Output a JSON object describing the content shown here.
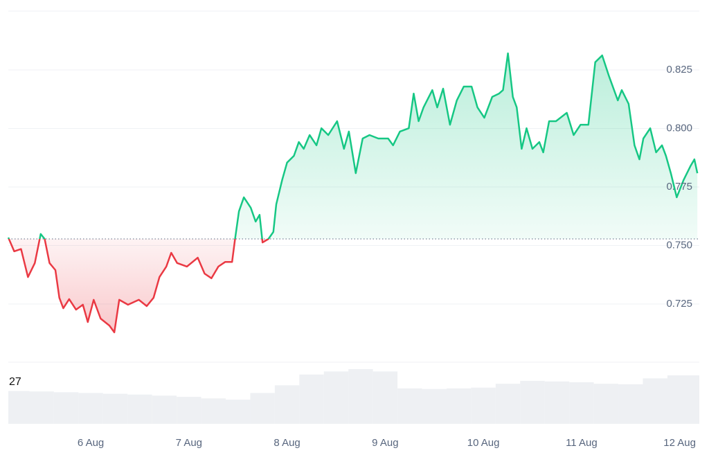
{
  "chart_data": {
    "type": "line",
    "x": [
      5.16,
      5.22,
      5.29,
      5.36,
      5.43,
      5.49,
      5.53,
      5.58,
      5.64,
      5.68,
      5.72,
      5.78,
      5.85,
      5.92,
      5.97,
      6.03,
      6.1,
      6.19,
      6.24,
      6.29,
      6.38,
      6.49,
      6.57,
      6.64,
      6.7,
      6.77,
      6.82,
      6.88,
      6.98,
      7.09,
      7.16,
      7.23,
      7.3,
      7.37,
      7.44,
      7.47,
      7.51,
      7.56,
      7.63,
      7.68,
      7.72,
      7.75,
      7.81,
      7.86,
      7.89,
      7.95,
      8.0,
      8.07,
      8.12,
      8.17,
      8.23,
      8.3,
      8.35,
      8.42,
      8.51,
      8.58,
      8.63,
      8.7,
      8.77,
      8.84,
      8.93,
      9.03,
      9.08,
      9.15,
      9.24,
      9.29,
      9.34,
      9.39,
      9.48,
      9.53,
      9.59,
      9.66,
      9.73,
      9.8,
      9.88,
      9.94,
      10.01,
      10.09,
      10.16,
      10.2,
      10.25,
      10.3,
      10.34,
      10.39,
      10.44,
      10.5,
      10.57,
      10.61,
      10.67,
      10.74,
      10.85,
      10.92,
      10.99,
      11.07,
      11.14,
      11.21,
      11.28,
      11.37,
      11.41,
      11.48,
      11.54,
      11.59,
      11.63,
      11.7,
      11.76,
      11.82,
      11.86,
      11.91,
      11.97,
      12.04,
      12.11,
      12.15,
      12.18
    ],
    "values": [
      0.7534,
      0.7475,
      0.7485,
      0.7365,
      0.7425,
      0.7549,
      0.7528,
      0.7425,
      0.7395,
      0.7277,
      0.7232,
      0.7271,
      0.7226,
      0.7247,
      0.7173,
      0.7268,
      0.7188,
      0.7158,
      0.7129,
      0.7268,
      0.7247,
      0.7268,
      0.7241,
      0.7277,
      0.7365,
      0.741,
      0.7469,
      0.7425,
      0.741,
      0.7448,
      0.738,
      0.736,
      0.741,
      0.743,
      0.743,
      0.7528,
      0.7646,
      0.7706,
      0.7661,
      0.7602,
      0.7631,
      0.7513,
      0.7528,
      0.7558,
      0.7676,
      0.778,
      0.7854,
      0.7883,
      0.7942,
      0.7913,
      0.7972,
      0.7928,
      0.8001,
      0.7972,
      0.8031,
      0.7913,
      0.7987,
      0.7809,
      0.7957,
      0.7972,
      0.7957,
      0.7957,
      0.7928,
      0.7987,
      0.8001,
      0.8149,
      0.8031,
      0.809,
      0.8164,
      0.809,
      0.817,
      0.8016,
      0.812,
      0.8179,
      0.8179,
      0.809,
      0.8046,
      0.8135,
      0.8149,
      0.8164,
      0.8321,
      0.8135,
      0.809,
      0.7913,
      0.8001,
      0.7913,
      0.7942,
      0.7898,
      0.8031,
      0.8031,
      0.8067,
      0.7972,
      0.8016,
      0.8016,
      0.8283,
      0.8312,
      0.8223,
      0.812,
      0.8164,
      0.8105,
      0.7928,
      0.7868,
      0.7957,
      0.8001,
      0.7898,
      0.7928,
      0.7883,
      0.7809,
      0.7706,
      0.778,
      0.7839,
      0.7868,
      0.7809
    ],
    "baseline": 0.7528,
    "up_color": "#16c784",
    "down_color": "#ea3943",
    "xlim": [
      5.16,
      12.2
    ],
    "xticks": [
      {
        "value": 6,
        "label": "6 Aug"
      },
      {
        "value": 7,
        "label": "7 Aug"
      },
      {
        "value": 8,
        "label": "8 Aug"
      },
      {
        "value": 9,
        "label": "9 Aug"
      },
      {
        "value": 10,
        "label": "10 Aug"
      },
      {
        "value": 11,
        "label": "11 Aug"
      },
      {
        "value": 12,
        "label": "12 Aug"
      }
    ],
    "ylim": [
      0.7,
      0.85
    ],
    "yticks": [
      0.725,
      {
        "value": 0.75,
        "label": "0.750"
      },
      0.775,
      {
        "value": 0.8,
        "label": "0.800"
      },
      0.825
    ],
    "grid": true,
    "volume": {
      "x": [
        5.25,
        5.5,
        5.75,
        6.0,
        6.25,
        6.5,
        6.75,
        7.0,
        7.25,
        7.5,
        7.75,
        8.0,
        8.25,
        8.5,
        8.75,
        9.0,
        9.25,
        9.5,
        9.75,
        10.0,
        10.25,
        10.5,
        10.75,
        11.0,
        11.25,
        11.5,
        11.75,
        12.0
      ],
      "values": [
        21.3,
        21,
        20.5,
        20,
        19.5,
        19,
        18.3,
        17.5,
        16.5,
        15.7,
        20,
        25,
        32,
        34,
        35.5,
        34,
        23,
        22.6,
        23,
        23.5,
        26,
        27.9,
        27.5,
        27,
        26,
        25.7,
        29.5,
        31.5
      ],
      "ylim": [
        0,
        40
      ],
      "yticks": [
        27
      ],
      "color": "#eef0f3"
    }
  }
}
